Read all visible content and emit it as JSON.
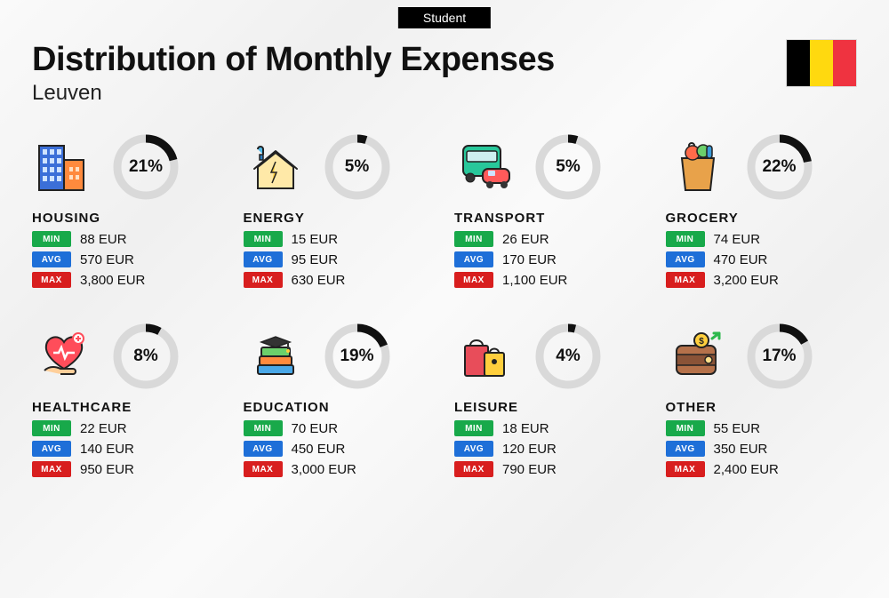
{
  "tag": "Student",
  "title": "Distribution of Monthly Expenses",
  "subtitle": "Leuven",
  "flag_colors": [
    "#000000",
    "#FFD90F",
    "#EF3340"
  ],
  "chip_colors": {
    "min": "#18a94a",
    "avg": "#1e6fd8",
    "max": "#d81e1e"
  },
  "chip_labels": {
    "min": "MIN",
    "avg": "AVG",
    "max": "MAX"
  },
  "donut": {
    "radius": 32,
    "stroke_width": 9,
    "bg_color": "#d9d9d9",
    "fg_color": "#111111"
  },
  "currency": "EUR",
  "categories": [
    {
      "name": "HOUSING",
      "percent": 21,
      "min": "88 EUR",
      "avg": "570 EUR",
      "max": "3,800 EUR",
      "icon": "buildings"
    },
    {
      "name": "ENERGY",
      "percent": 5,
      "min": "15 EUR",
      "avg": "95 EUR",
      "max": "630 EUR",
      "icon": "energy-house"
    },
    {
      "name": "TRANSPORT",
      "percent": 5,
      "min": "26 EUR",
      "avg": "170 EUR",
      "max": "1,100 EUR",
      "icon": "bus-car"
    },
    {
      "name": "GROCERY",
      "percent": 22,
      "min": "74 EUR",
      "avg": "470 EUR",
      "max": "3,200 EUR",
      "icon": "grocery-bag"
    },
    {
      "name": "HEALTHCARE",
      "percent": 8,
      "min": "22 EUR",
      "avg": "140 EUR",
      "max": "950 EUR",
      "icon": "heart-hand"
    },
    {
      "name": "EDUCATION",
      "percent": 19,
      "min": "70 EUR",
      "avg": "450 EUR",
      "max": "3,000 EUR",
      "icon": "grad-books"
    },
    {
      "name": "LEISURE",
      "percent": 4,
      "min": "18 EUR",
      "avg": "120 EUR",
      "max": "790 EUR",
      "icon": "shopping-bags"
    },
    {
      "name": "OTHER",
      "percent": 17,
      "min": "55 EUR",
      "avg": "350 EUR",
      "max": "2,400 EUR",
      "icon": "wallet"
    }
  ]
}
